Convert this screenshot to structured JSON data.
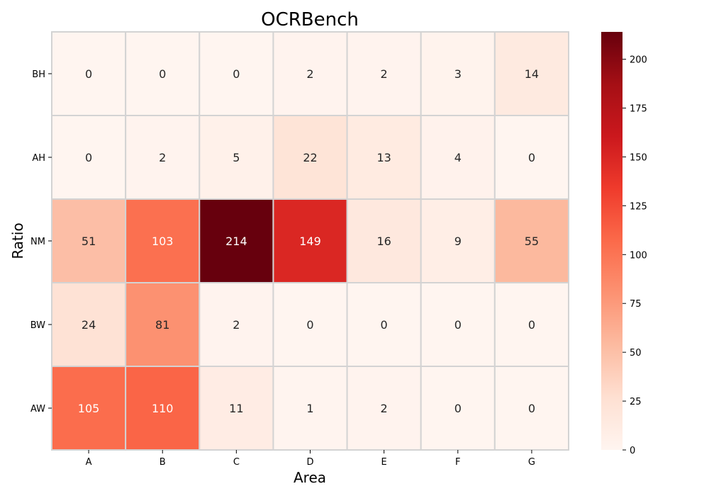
{
  "chart_data": {
    "type": "heatmap",
    "title": "OCRBench",
    "xlabel": "Area",
    "ylabel": "Ratio",
    "x_categories": [
      "A",
      "B",
      "C",
      "D",
      "E",
      "F",
      "G"
    ],
    "y_categories": [
      "BH",
      "AH",
      "NM",
      "BW",
      "AW"
    ],
    "values": [
      [
        0,
        0,
        0,
        2,
        2,
        3,
        14
      ],
      [
        0,
        2,
        5,
        22,
        13,
        4,
        0
      ],
      [
        51,
        103,
        214,
        149,
        16,
        9,
        55
      ],
      [
        24,
        81,
        2,
        0,
        0,
        0,
        0
      ],
      [
        105,
        110,
        11,
        1,
        2,
        0,
        0
      ]
    ],
    "colorbar": {
      "min": 0,
      "max": 214,
      "ticks": [
        0,
        25,
        50,
        75,
        100,
        125,
        150,
        175,
        200
      ],
      "colormap": "Reds"
    },
    "annotations": true,
    "grid": false
  }
}
